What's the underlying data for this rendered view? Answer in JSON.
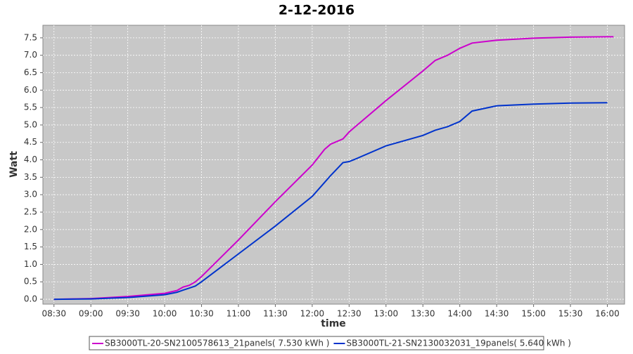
{
  "chart_data": {
    "type": "line",
    "title": "2-12-2016",
    "x_label": "time",
    "y_label": "Watt",
    "x": [
      "08:30",
      "09:00",
      "09:30",
      "10:00",
      "10:10",
      "10:15",
      "10:20",
      "10:25",
      "10:30",
      "11:00",
      "11:30",
      "12:00",
      "12:10",
      "12:15",
      "12:25",
      "12:30",
      "12:35",
      "13:00",
      "13:30",
      "13:40",
      "13:50",
      "14:00",
      "14:10",
      "14:30",
      "15:00",
      "15:30",
      "16:00",
      "16:05"
    ],
    "series": [
      {
        "name": "SB3000TL-20-SN2100578613_21panels( 7.530 kWh )",
        "color": "#cc00cc",
        "values": [
          0,
          0.02,
          0.08,
          0.17,
          0.25,
          0.35,
          0.4,
          0.5,
          0.65,
          1.7,
          2.8,
          3.85,
          4.3,
          4.45,
          4.6,
          4.8,
          4.95,
          5.7,
          6.55,
          6.85,
          7.0,
          7.2,
          7.35,
          7.43,
          7.49,
          7.52,
          7.53,
          7.53
        ]
      },
      {
        "name": "SB3000TL-21-SN2130032031_19panels( 5.640 kWh )",
        "color": "#0033cc",
        "values": [
          0,
          0.01,
          0.05,
          0.13,
          0.2,
          0.26,
          0.32,
          0.38,
          0.5,
          1.3,
          2.1,
          2.95,
          3.35,
          3.55,
          3.92,
          3.95,
          4.02,
          4.4,
          4.7,
          4.85,
          4.95,
          5.1,
          5.4,
          5.55,
          5.6,
          5.63,
          5.64,
          null
        ]
      }
    ],
    "xlim": [
      "08:21",
      "16:14"
    ],
    "xticks": [
      "08:30",
      "09:00",
      "09:30",
      "10:00",
      "10:30",
      "11:00",
      "11:30",
      "12:00",
      "12:30",
      "13:00",
      "13:30",
      "14:00",
      "14:30",
      "15:00",
      "15:30",
      "16:00"
    ],
    "ylim": [
      -0.14,
      7.86
    ],
    "yticks": [
      {
        "value": 0,
        "label": "0.0"
      },
      0.5,
      {
        "value": 1,
        "label": "1.0"
      },
      1.5,
      {
        "value": 2,
        "label": "2.0"
      },
      2.5,
      {
        "value": 3,
        "label": "3.0"
      },
      3.5,
      {
        "value": 4,
        "label": "4.0"
      },
      4.5,
      {
        "value": 5,
        "label": "5.0"
      },
      5.5,
      {
        "value": 6,
        "label": "6.0"
      },
      6.5,
      {
        "value": 7,
        "label": "7.0"
      },
      7.5
    ],
    "grid": true,
    "legend": "bottom"
  }
}
